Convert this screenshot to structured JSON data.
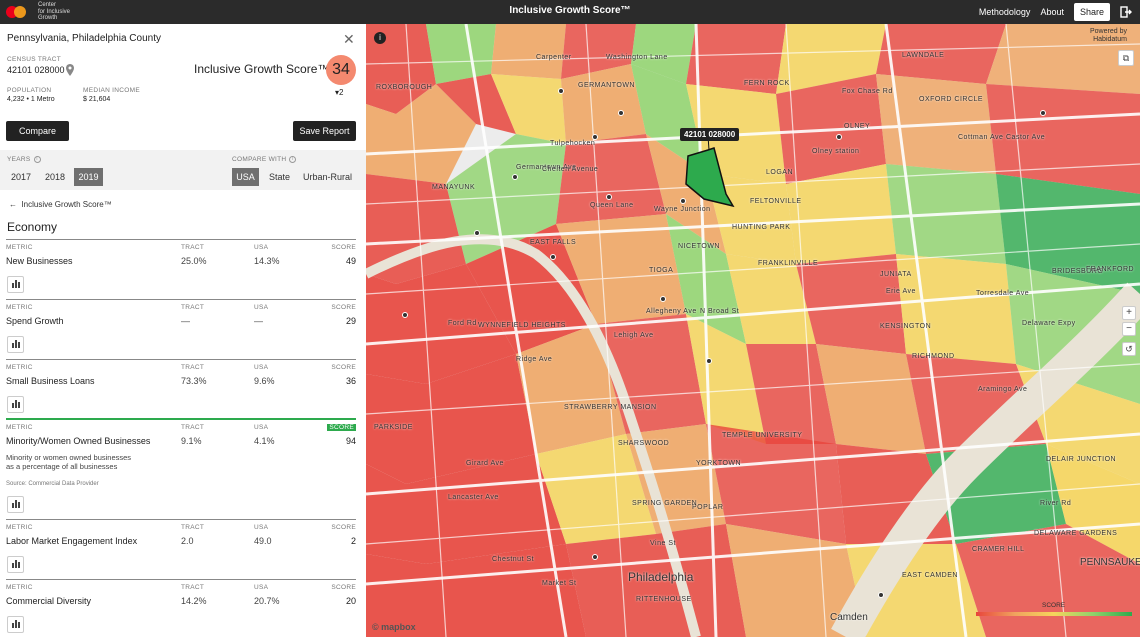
{
  "header": {
    "logo_text": [
      "Center",
      "for Inclusive",
      "Growth"
    ],
    "title": "Inclusive Growth Score™",
    "nav": {
      "methodology": "Methodology",
      "about": "About",
      "share": "Share"
    }
  },
  "panel": {
    "location": "Pennsylvania, Philadelphia County",
    "tract_label": "CENSUS TRACT",
    "tract_value": "42101 028000",
    "score_label": "Inclusive Growth Score™",
    "score_value": "34",
    "score_change": "▾2",
    "population_label": "POPULATION",
    "population_value": "4,232  •  1 Metro",
    "income_label": "MEDIAN INCOME",
    "income_value": "$ 21,604",
    "compare_button": "Compare",
    "save_button": "Save Report",
    "years_label": "YEARS",
    "years": [
      "2017",
      "2018",
      "2019"
    ],
    "selected_year": "2019",
    "compare_with_label": "COMPARE WITH",
    "compare_options": [
      "USA",
      "State",
      "Urban-Rural"
    ],
    "selected_compare": "USA",
    "back_label": "Inclusive Growth Score™",
    "section_title": "Economy",
    "column_headers": {
      "metric": "METRIC",
      "tract": "TRACT",
      "usa": "USA",
      "score": "SCORE"
    },
    "metrics": [
      {
        "name": "New Businesses",
        "tract": "25.0%",
        "usa": "14.3%",
        "score": "49"
      },
      {
        "name": "Spend Growth",
        "tract": "—",
        "usa": "—",
        "score": "29"
      },
      {
        "name": "Small Business Loans",
        "tract": "73.3%",
        "usa": "9.6%",
        "score": "36"
      },
      {
        "name": "Minority/Women Owned Businesses",
        "tract": "9.1%",
        "usa": "4.1%",
        "score": "94",
        "description": [
          "Minority or women owned businesses",
          "as a percentage of all businesses"
        ],
        "source": "Source: Commercial Data Provider"
      },
      {
        "name": "Labor Market Engagement Index",
        "tract": "2.0",
        "usa": "49.0",
        "score": "2"
      },
      {
        "name": "Commercial Diversity",
        "tract": "14.2%",
        "usa": "20.7%",
        "score": "20"
      }
    ]
  },
  "map": {
    "tooltip": "42101 028000",
    "attribution": [
      "Powered by",
      "Habidatum"
    ],
    "mapbox": "© mapbox",
    "legend_label": "SCORE",
    "city_label": "Philadelphia",
    "camden_label": "Camden",
    "neighborhoods": [
      "ROXBOROUGH",
      "GERMANTOWN",
      "FERN ROCK",
      "LAWNDALE",
      "OXFORD CIRCLE",
      "LOGAN",
      "OLNEY",
      "MANAYUNK",
      "EAST FALLS",
      "NICETOWN",
      "HUNTING PARK",
      "FRANKLINVILLE",
      "JUNIATA",
      "TIOGA",
      "STRAWBERRY MANSION",
      "SHARSWOOD",
      "YORKTOWN",
      "POPLAR",
      "RICHMOND",
      "KENSINGTON",
      "WYNNEFIELD HEIGHTS",
      "PARKSIDE",
      "SPRING GARDEN",
      "RITTENHOUSE",
      "EAST CAMDEN",
      "PENNSAUKEN",
      "CRAMER HILL",
      "DELAWARE GARDENS",
      "FELTONVILLE",
      "BRIDESBURG",
      "FRANKFORD",
      "TEMPLE UNIVERSITY",
      "DELAIR JUNCTION"
    ],
    "streets": [
      "Lehigh Ave",
      "Allegheny Ave",
      "Erie Ave",
      "Germantown Ave",
      "Ridge Ave",
      "Girard Ave",
      "Market St",
      "Chestnut St",
      "Vine St",
      "N Broad St",
      "Wayne Junction",
      "Queen Lane",
      "Olney station",
      "Chelten Avenue",
      "Tulpehocken",
      "Carpenter",
      "Washington Lane",
      "Fox Chase Rd",
      "Cottman Ave",
      "Castor Ave",
      "Torresdale Ave",
      "Aramingo Ave",
      "Delaware Expy",
      "River Rd",
      "Ford Rd",
      "Lancaster Ave"
    ],
    "colors": {
      "red": "#e8453c",
      "orange": "#f0a35e",
      "yellow": "#f6d55c",
      "lightgreen": "#8fd36b",
      "green": "#2daa4d"
    }
  }
}
